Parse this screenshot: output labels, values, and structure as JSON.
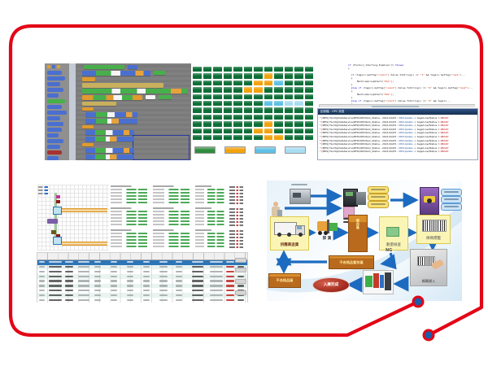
{
  "slide": {
    "frame_color": "#E30617",
    "connector_dot_color": "#1A5DA8",
    "divider_color": "#E30617"
  },
  "status_grid": {
    "rows": [
      "GGGGGGGGGGGG",
      "GGGGGGGOGGGG",
      "GGGGGGOOCGGG",
      "GGGGGOOGGGGG",
      "GGGGGGGGGGGG",
      "GGGGGGGCCLLG",
      "GGGGGGGGGGGG",
      "GGGGGGGGGGGG",
      "GGGGGGGOGGGG",
      "GGGGGGOOGGGG",
      "GGGGGGGOOGGG"
    ],
    "legend_colors": [
      "#2e8b3e",
      "#f2a20c",
      "#5fc0e6",
      "#a9dcf2",
      "#e23b2e"
    ]
  },
  "code_editor": {
    "lines": [
      [
        [
          "if ",
          "k"
        ],
        [
          "(Factory_Starting.Enabled == ",
          "d"
        ],
        [
          "false",
          "k"
        ],
        [
          ")",
          "d"
        ]
      ],
      [
        [
          "{",
          "d"
        ]
      ],
      [
        [
          " ",
          "d"
        ]
      ],
      [
        [
          "  ",
          "d"
        ],
        [
          "if",
          "k"
        ],
        [
          " (tagsrv.GetTag(",
          "d"
        ],
        [
          "\"conn1\"",
          "s"
        ],
        [
          ").Value.ToString() == ",
          "d"
        ],
        [
          "\"1\"",
          "s"
        ],
        [
          " && tagsrv.GetTag(",
          "d"
        ],
        [
          "\"res1\"",
          "s"
        ],
        [
          ")...",
          "d"
        ]
      ],
      [
        [
          "  {",
          "d"
        ]
      ],
      [
        [
          "      MachineGroupStart(",
          "d"
        ],
        [
          "\"011\"",
          "s"
        ],
        [
          ");",
          "d"
        ]
      ],
      [
        [
          "  }",
          "d"
        ]
      ],
      [
        [
          "  ",
          "d"
        ],
        [
          "else if",
          "k"
        ],
        [
          " (tagsrv.GetTag(",
          "d"
        ],
        [
          "\"conn2\"",
          "s"
        ],
        [
          ").Value.ToString() == ",
          "d"
        ],
        [
          "\"2\"",
          "s"
        ],
        [
          " && tagsrv.GetTag(",
          "d"
        ],
        [
          "\"res2\"",
          "s"
        ],
        [
          ")...",
          "d"
        ]
      ],
      [
        [
          "  {",
          "d"
        ]
      ],
      [
        [
          "      MachineGroupStart(",
          "d"
        ],
        [
          "\"021\"",
          "s"
        ],
        [
          ");",
          "d"
        ]
      ],
      [
        [
          "  }",
          "d"
        ]
      ],
      [
        [
          "  ",
          "d"
        ],
        [
          "else if",
          "k"
        ],
        [
          " (tagsrv.GetTag(",
          "d"
        ],
        [
          "\"conn3\"",
          "s"
        ],
        [
          ").Value.ToString() == ",
          "d"
        ],
        [
          "\"3\"",
          "s"
        ],
        [
          " && tagsrv...",
          "d"
        ]
      ],
      [
        [
          "  {",
          "d"
        ]
      ]
    ]
  },
  "log_window": {
    "title": "記錄檔 - OPC 訊息",
    "line": [
      [
        "* ",
        "r"
      ],
      [
        "[MES] FacilityDataService/RFID/OPCItem_Status - 2021/10/05 : ",
        "d"
      ],
      [
        "OPCUpdate",
        "b"
      ],
      [
        " -> tags/Line/Status = ",
        "d"
      ],
      [
        "READY",
        "r"
      ]
    ],
    "line_count": 10
  },
  "flow": {
    "labels": {
      "supplier": "供應商送貨",
      "unload": "卸 貨",
      "staging": "暫存區",
      "qty_check": "數量檢查",
      "barcode_label": "條碼標籤",
      "ng": "NG",
      "reject_staging": "不合格品暫存區",
      "reject_area": "不合格品區",
      "scan_in": "條碼掃入",
      "done": "入庫完成"
    }
  }
}
